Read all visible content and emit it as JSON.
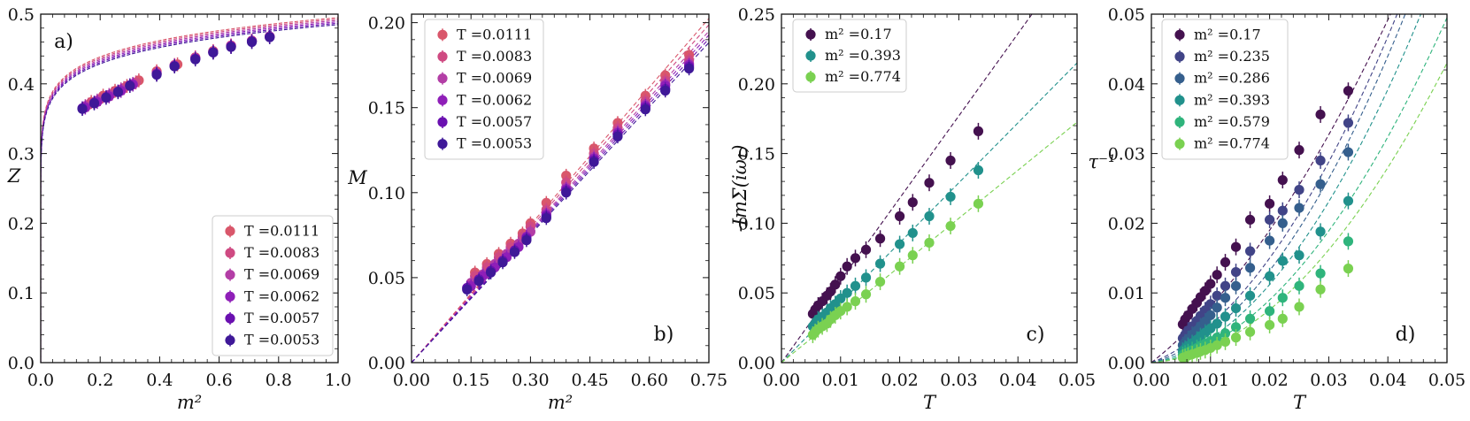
{
  "chart_data": [
    {
      "type": "scatter",
      "panel_label": "a)",
      "xlabel": "m²",
      "ylabel": "Z",
      "xlim": [
        0,
        1.0
      ],
      "ylim": [
        0,
        0.5
      ],
      "xticks": [
        0.0,
        0.2,
        0.4,
        0.6,
        0.8,
        1.0
      ],
      "xtick_labels": [
        "0.0",
        "0.2",
        "0.4",
        "0.6",
        "0.8",
        "1.0"
      ],
      "yticks": [
        0.0,
        0.1,
        0.2,
        0.3,
        0.4,
        0.5
      ],
      "ytick_labels": [
        "0.0",
        "0.1",
        "0.2",
        "0.3",
        "0.4",
        "0.5"
      ],
      "legend": "lower-right",
      "series": [
        {
          "name": "T =0.0111",
          "color": "#d9576b",
          "x": [
            0.17,
            0.21,
            0.25,
            0.29,
            0.33,
            0.39,
            0.46,
            0.52,
            0.58,
            0.64,
            0.71,
            0.77
          ],
          "y": [
            0.374,
            0.383,
            0.39,
            0.397,
            0.405,
            0.418,
            0.428,
            0.438,
            0.447,
            0.455,
            0.462,
            0.468
          ],
          "err": 0.01
        },
        {
          "name": "T =0.0083",
          "color": "#cf4a82",
          "x": [
            0.16,
            0.2,
            0.24,
            0.28,
            0.32,
            0.39,
            0.45,
            0.52,
            0.58,
            0.64,
            0.71,
            0.77
          ],
          "y": [
            0.37,
            0.378,
            0.386,
            0.394,
            0.402,
            0.416,
            0.427,
            0.437,
            0.446,
            0.455,
            0.462,
            0.468
          ],
          "err": 0.01
        },
        {
          "name": "T =0.0069",
          "color": "#b33ea6",
          "x": [
            0.15,
            0.19,
            0.23,
            0.27,
            0.31,
            0.39,
            0.45,
            0.52,
            0.58,
            0.64,
            0.71,
            0.77
          ],
          "y": [
            0.368,
            0.376,
            0.384,
            0.392,
            0.4,
            0.415,
            0.426,
            0.437,
            0.446,
            0.454,
            0.461,
            0.468
          ],
          "err": 0.01
        },
        {
          "name": "T =0.0062",
          "color": "#8f1fb8",
          "x": [
            0.15,
            0.19,
            0.23,
            0.27,
            0.31,
            0.39,
            0.45,
            0.52,
            0.58,
            0.64,
            0.71,
            0.77
          ],
          "y": [
            0.366,
            0.374,
            0.382,
            0.39,
            0.399,
            0.414,
            0.426,
            0.436,
            0.445,
            0.454,
            0.461,
            0.467
          ],
          "err": 0.01
        },
        {
          "name": "T =0.0057",
          "color": "#6a10b0",
          "x": [
            0.14,
            0.18,
            0.22,
            0.26,
            0.3,
            0.39,
            0.45,
            0.52,
            0.58,
            0.64,
            0.71,
            0.77
          ],
          "y": [
            0.365,
            0.373,
            0.381,
            0.389,
            0.398,
            0.414,
            0.425,
            0.436,
            0.445,
            0.453,
            0.461,
            0.467
          ],
          "err": 0.01
        },
        {
          "name": "T =0.0053",
          "color": "#3f1898",
          "x": [
            0.14,
            0.18,
            0.22,
            0.26,
            0.3,
            0.39,
            0.45,
            0.52,
            0.58,
            0.64,
            0.71,
            0.77
          ],
          "y": [
            0.364,
            0.372,
            0.38,
            0.388,
            0.397,
            0.413,
            0.425,
            0.435,
            0.445,
            0.453,
            0.46,
            0.467
          ],
          "err": 0.01
        }
      ]
    },
    {
      "type": "scatter",
      "panel_label": "b)",
      "xlabel": "m²",
      "ylabel": "M",
      "xlim": [
        0,
        0.75
      ],
      "ylim": [
        0,
        0.205
      ],
      "xticks": [
        0.0,
        0.15,
        0.3,
        0.45,
        0.6,
        0.75
      ],
      "xtick_labels": [
        "0.00",
        "0.15",
        "0.30",
        "0.45",
        "0.60",
        "0.75"
      ],
      "yticks": [
        0.0,
        0.05,
        0.1,
        0.15,
        0.2
      ],
      "ytick_labels": [
        "0.00",
        "0.05",
        "0.10",
        "0.15",
        "0.20"
      ],
      "legend": "top-left",
      "series": [
        {
          "name": "T =0.0111",
          "color": "#d9576b",
          "slope": 0.27,
          "x": [
            0.16,
            0.19,
            0.22,
            0.25,
            0.28,
            0.3,
            0.34,
            0.39,
            0.46,
            0.52,
            0.59,
            0.64,
            0.7
          ],
          "y": [
            0.053,
            0.058,
            0.064,
            0.07,
            0.076,
            0.082,
            0.094,
            0.11,
            0.126,
            0.141,
            0.157,
            0.169,
            0.181
          ],
          "err": 0.004
        },
        {
          "name": "T =0.0083",
          "color": "#cf4a82",
          "slope": 0.265,
          "x": [
            0.16,
            0.19,
            0.22,
            0.25,
            0.28,
            0.3,
            0.34,
            0.39,
            0.46,
            0.52,
            0.59,
            0.64,
            0.7
          ],
          "y": [
            0.051,
            0.056,
            0.062,
            0.068,
            0.074,
            0.08,
            0.09,
            0.106,
            0.123,
            0.138,
            0.154,
            0.166,
            0.178
          ],
          "err": 0.004
        },
        {
          "name": "T =0.0069",
          "color": "#b33ea6",
          "slope": 0.26,
          "x": [
            0.15,
            0.18,
            0.21,
            0.24,
            0.27,
            0.3,
            0.34,
            0.39,
            0.46,
            0.52,
            0.59,
            0.64,
            0.7
          ],
          "y": [
            0.047,
            0.052,
            0.058,
            0.064,
            0.07,
            0.077,
            0.088,
            0.103,
            0.121,
            0.136,
            0.152,
            0.164,
            0.176
          ],
          "err": 0.004
        },
        {
          "name": "T =0.0062",
          "color": "#8f1fb8",
          "slope": 0.257,
          "x": [
            0.15,
            0.18,
            0.21,
            0.24,
            0.27,
            0.29,
            0.34,
            0.39,
            0.46,
            0.52,
            0.59,
            0.64,
            0.7
          ],
          "y": [
            0.045,
            0.051,
            0.056,
            0.062,
            0.068,
            0.074,
            0.087,
            0.102,
            0.12,
            0.135,
            0.151,
            0.163,
            0.175
          ],
          "err": 0.004
        },
        {
          "name": "T =0.0057",
          "color": "#6a10b0",
          "slope": 0.254,
          "x": [
            0.14,
            0.17,
            0.2,
            0.23,
            0.26,
            0.29,
            0.34,
            0.39,
            0.46,
            0.52,
            0.59,
            0.64,
            0.7
          ],
          "y": [
            0.044,
            0.049,
            0.054,
            0.06,
            0.066,
            0.073,
            0.086,
            0.101,
            0.119,
            0.134,
            0.15,
            0.161,
            0.174
          ],
          "err": 0.004
        },
        {
          "name": "T =0.0053",
          "color": "#3f1898",
          "slope": 0.251,
          "x": [
            0.14,
            0.17,
            0.2,
            0.23,
            0.26,
            0.29,
            0.34,
            0.39,
            0.46,
            0.52,
            0.59,
            0.64,
            0.7
          ],
          "y": [
            0.043,
            0.048,
            0.053,
            0.059,
            0.065,
            0.072,
            0.085,
            0.1,
            0.118,
            0.133,
            0.149,
            0.16,
            0.173
          ],
          "err": 0.004
        }
      ]
    },
    {
      "type": "scatter",
      "panel_label": "c)",
      "xlabel": "T",
      "ylabel": "-ImΣ(iω₁)",
      "xlim": [
        0,
        0.05
      ],
      "ylim": [
        0,
        0.25
      ],
      "xticks": [
        0.0,
        0.01,
        0.02,
        0.03,
        0.04,
        0.05
      ],
      "xtick_labels": [
        "0.00",
        "0.01",
        "0.02",
        "0.03",
        "0.04",
        "0.05"
      ],
      "yticks": [
        0.0,
        0.05,
        0.1,
        0.15,
        0.2,
        0.25
      ],
      "ytick_labels": [
        "0.00",
        "0.05",
        "0.10",
        "0.15",
        "0.20",
        "0.25"
      ],
      "legend": "top-left",
      "series": [
        {
          "name": "m² =0.17",
          "color": "#44114f",
          "slope": 5.9,
          "x": [
            0.0053,
            0.0057,
            0.0062,
            0.0069,
            0.0077,
            0.0083,
            0.0091,
            0.01,
            0.0111,
            0.0125,
            0.0143,
            0.0167,
            0.02,
            0.0222,
            0.025,
            0.0286,
            0.0333
          ],
          "y": [
            0.035,
            0.038,
            0.041,
            0.044,
            0.048,
            0.051,
            0.056,
            0.062,
            0.069,
            0.075,
            0.081,
            0.089,
            0.105,
            0.115,
            0.129,
            0.145,
            0.166
          ],
          "err": 0.006
        },
        {
          "name": "m² =0.393",
          "color": "#21918c",
          "slope": 4.3,
          "x": [
            0.0053,
            0.0057,
            0.0062,
            0.0069,
            0.0077,
            0.0083,
            0.0091,
            0.01,
            0.0111,
            0.0125,
            0.0143,
            0.0167,
            0.02,
            0.0222,
            0.025,
            0.0286,
            0.0333
          ],
          "y": [
            0.026,
            0.028,
            0.031,
            0.033,
            0.036,
            0.039,
            0.042,
            0.046,
            0.05,
            0.055,
            0.061,
            0.071,
            0.085,
            0.093,
            0.105,
            0.119,
            0.138
          ],
          "err": 0.006
        },
        {
          "name": "m² =0.774",
          "color": "#7ad151",
          "slope": 3.45,
          "x": [
            0.0053,
            0.0057,
            0.0062,
            0.0069,
            0.0077,
            0.0083,
            0.0091,
            0.01,
            0.0111,
            0.0125,
            0.0143,
            0.0167,
            0.02,
            0.0222,
            0.025,
            0.0286,
            0.0333
          ],
          "y": [
            0.02,
            0.022,
            0.024,
            0.026,
            0.028,
            0.031,
            0.034,
            0.037,
            0.04,
            0.044,
            0.049,
            0.058,
            0.069,
            0.077,
            0.086,
            0.098,
            0.114
          ],
          "err": 0.006
        }
      ]
    },
    {
      "type": "scatter",
      "panel_label": "d)",
      "xlabel": "T",
      "ylabel": "τ⁻¹",
      "xlim": [
        0,
        0.05
      ],
      "ylim": [
        0,
        0.05
      ],
      "xticks": [
        0.0,
        0.01,
        0.02,
        0.03,
        0.04,
        0.05
      ],
      "xtick_labels": [
        "0.00",
        "0.01",
        "0.02",
        "0.03",
        "0.04",
        "0.05"
      ],
      "yticks": [
        0.0,
        0.01,
        0.02,
        0.03,
        0.04,
        0.05
      ],
      "ytick_labels": [
        "0.00",
        "0.01",
        "0.02",
        "0.03",
        "0.04",
        "0.05"
      ],
      "legend": "top-left",
      "x": [
        0.0053,
        0.0057,
        0.0062,
        0.0069,
        0.0077,
        0.0083,
        0.0091,
        0.01,
        0.0111,
        0.0125,
        0.0143,
        0.0167,
        0.02,
        0.0222,
        0.025,
        0.0286,
        0.0333
      ],
      "series": [
        {
          "name": "m² =0.17",
          "color": "#44114f",
          "fit_a": 0.67,
          "fit_b": 14,
          "y": [
            0.0055,
            0.0062,
            0.0068,
            0.0077,
            0.0086,
            0.0094,
            0.0103,
            0.0113,
            0.0126,
            0.0144,
            0.0166,
            0.0205,
            0.0228,
            0.0262,
            0.0305,
            0.0356,
            0.039
          ],
          "err": 0.0012
        },
        {
          "name": "m² =0.235",
          "color": "#414487",
          "fit_a": 0.33,
          "fit_b": 21,
          "y": [
            0.0035,
            0.004,
            0.0046,
            0.0052,
            0.006,
            0.0067,
            0.0075,
            0.0084,
            0.0096,
            0.011,
            0.013,
            0.016,
            0.0205,
            0.0218,
            0.0248,
            0.029,
            0.0344
          ],
          "err": 0.0012
        },
        {
          "name": "m² =0.286",
          "color": "#355f8d",
          "fit_a": 0.22,
          "fit_b": 22,
          "y": [
            0.0025,
            0.0029,
            0.0034,
            0.004,
            0.0046,
            0.0052,
            0.0059,
            0.0068,
            0.0079,
            0.0093,
            0.011,
            0.0136,
            0.0175,
            0.02,
            0.0222,
            0.0256,
            0.0302
          ],
          "err": 0.0012
        },
        {
          "name": "m² =0.393",
          "color": "#21918c",
          "fit_a": 0.14,
          "fit_b": 21,
          "y": [
            0.0017,
            0.002,
            0.0024,
            0.0028,
            0.0033,
            0.0038,
            0.0043,
            0.0049,
            0.0056,
            0.0066,
            0.0078,
            0.0096,
            0.0124,
            0.0146,
            0.0154,
            0.0188,
            0.0232
          ],
          "err": 0.0012
        },
        {
          "name": "m² =0.579",
          "color": "#2fb47c",
          "fit_a": 0.09,
          "fit_b": 18,
          "y": [
            0.0011,
            0.0013,
            0.0015,
            0.0018,
            0.0021,
            0.0024,
            0.0027,
            0.0031,
            0.0036,
            0.0042,
            0.0051,
            0.0063,
            0.0074,
            0.0093,
            0.011,
            0.0128,
            0.0174
          ],
          "err": 0.0012
        },
        {
          "name": "m² =0.774",
          "color": "#7ad151",
          "fit_a": 0.06,
          "fit_b": 16,
          "y": [
            0.0007,
            0.0008,
            0.001,
            0.0012,
            0.0014,
            0.0016,
            0.0018,
            0.0021,
            0.0025,
            0.003,
            0.0036,
            0.0044,
            0.0054,
            0.0063,
            0.008,
            0.0105,
            0.0135
          ],
          "err": 0.0012
        }
      ]
    }
  ]
}
